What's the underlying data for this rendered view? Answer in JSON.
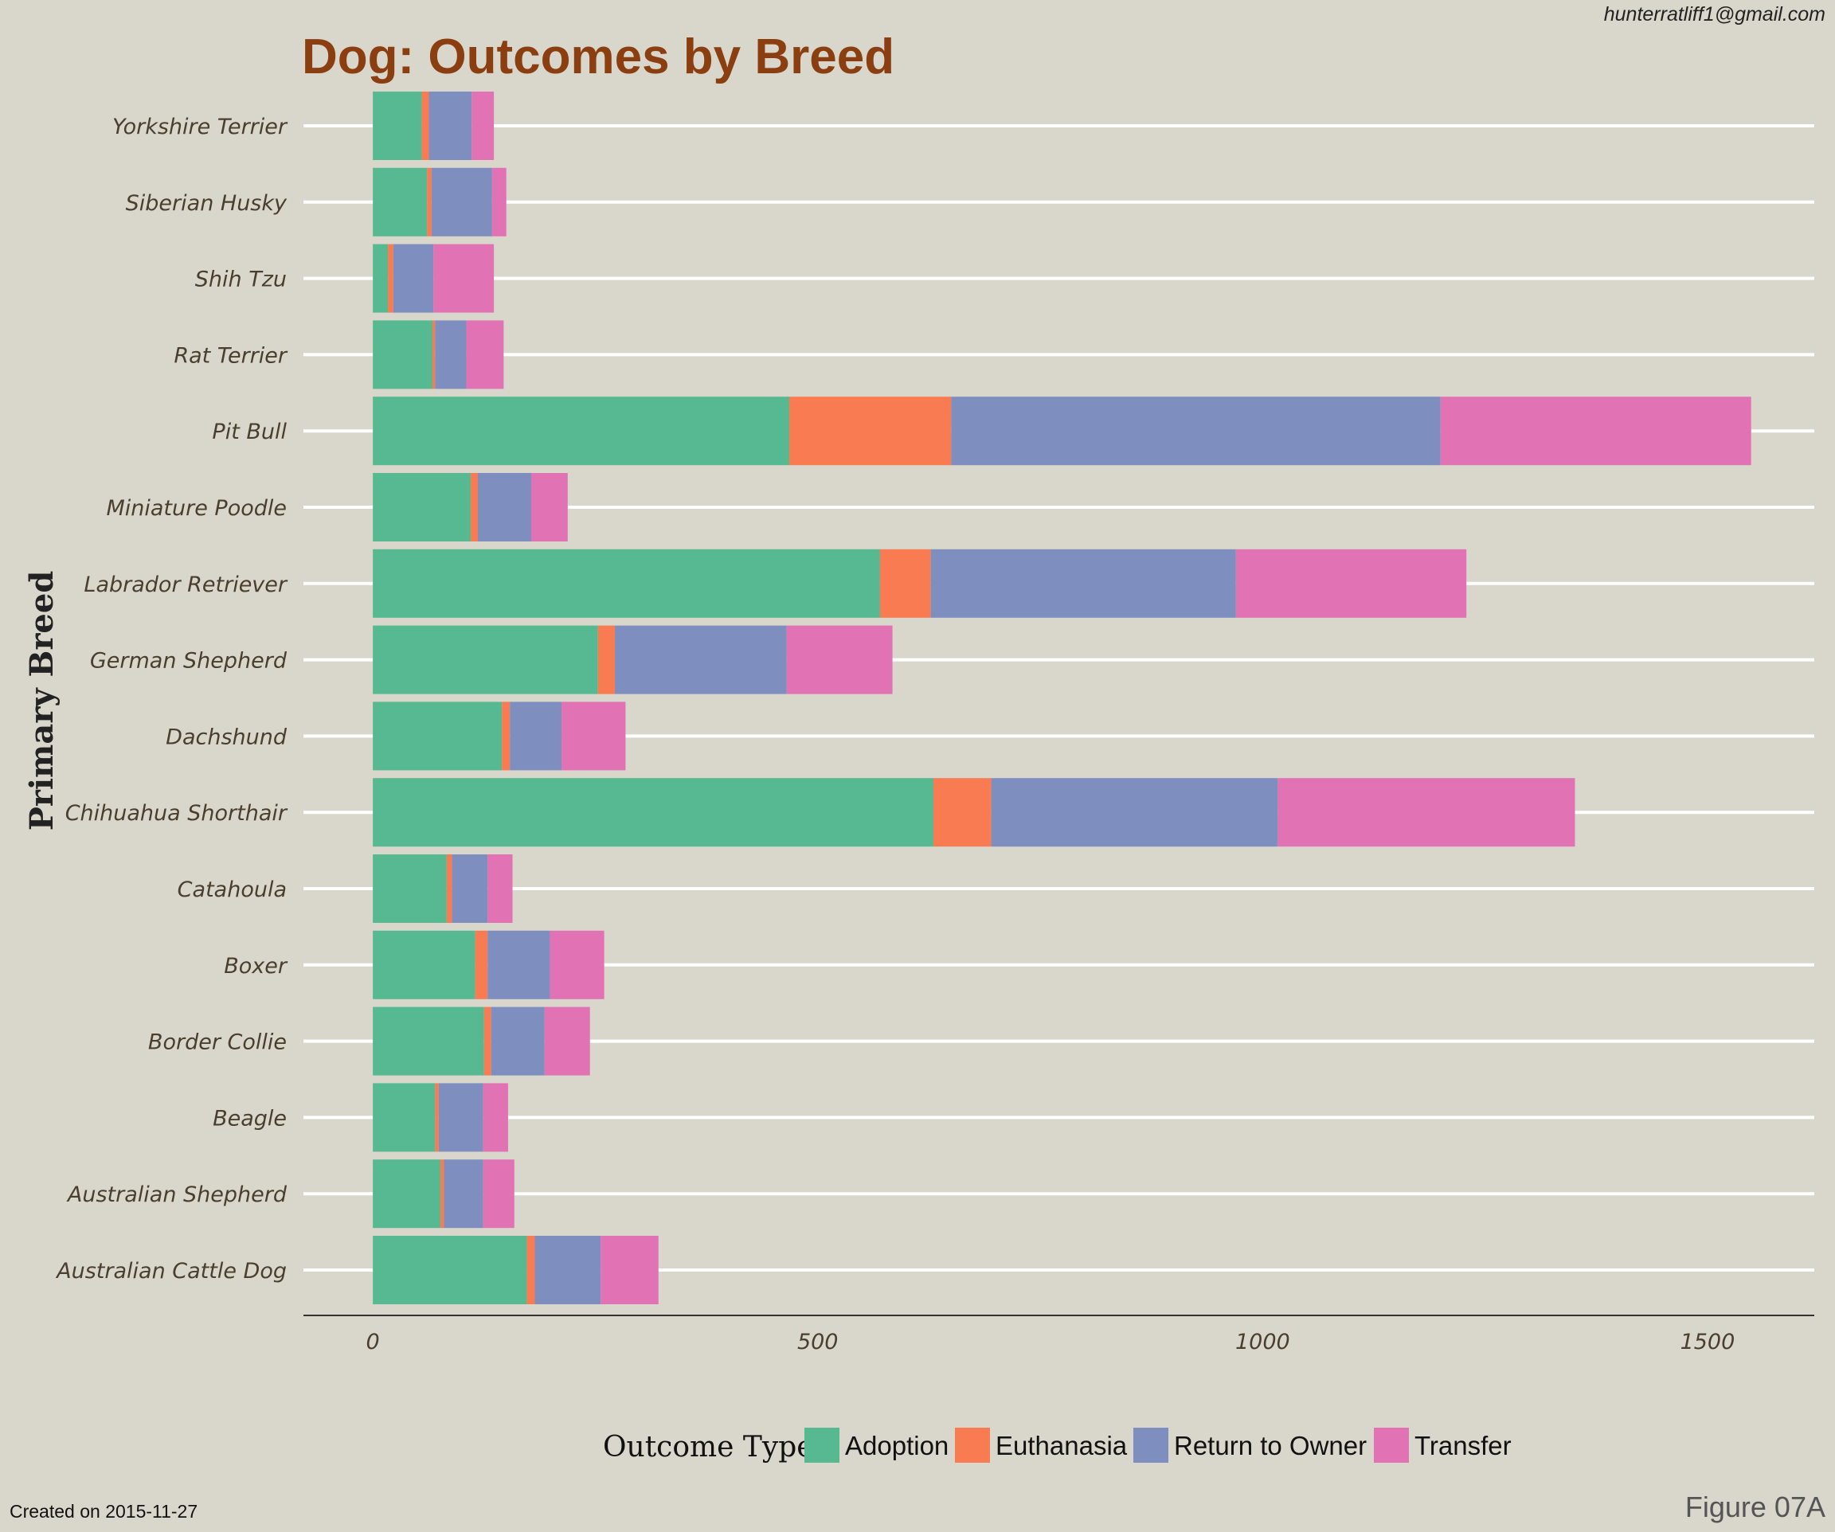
{
  "header": {
    "email": "hunterratliff1@gmail.com"
  },
  "footer": {
    "created": "Created on 2015-11-27",
    "figure": "Figure 07A"
  },
  "chart_data": {
    "type": "bar",
    "orientation": "horizontal",
    "stacked": true,
    "title": "Dog: Outcomes by Breed",
    "xlabel": "",
    "ylabel": "Primary Breed",
    "xlim": [
      -78,
      1620
    ],
    "xticks": [
      0,
      500,
      1000,
      1500
    ],
    "grid": "horizontal",
    "legend": {
      "title": "Outcome Type",
      "position": "bottom"
    },
    "categories": [
      "Yorkshire Terrier",
      "Siberian Husky",
      "Shih Tzu",
      "Rat Terrier",
      "Pit Bull",
      "Miniature Poodle",
      "Labrador Retriever",
      "German Shepherd",
      "Dachshund",
      "Chihuahua Shorthair",
      "Catahoula",
      "Boxer",
      "Border Collie",
      "Beagle",
      "Australian Shepherd",
      "Australian Cattle Dog"
    ],
    "series": [
      {
        "name": "Adoption",
        "color": "#56b991",
        "values": [
          55,
          61,
          17,
          67,
          468,
          110,
          570,
          253,
          145,
          630,
          83,
          115,
          125,
          70,
          76,
          173
        ]
      },
      {
        "name": "Euthanasia",
        "color": "#f97b52",
        "values": [
          8,
          5,
          6,
          3,
          182,
          8,
          57,
          19,
          9,
          65,
          6,
          14,
          8,
          4,
          4,
          9
        ]
      },
      {
        "name": "Return to Owner",
        "color": "#7e8ebf",
        "values": [
          48,
          68,
          45,
          35,
          550,
          60,
          343,
          193,
          58,
          322,
          40,
          70,
          60,
          50,
          44,
          74
        ]
      },
      {
        "name": "Transfer",
        "color": "#e173b5",
        "values": [
          25,
          16,
          68,
          42,
          349,
          41,
          259,
          119,
          72,
          334,
          28,
          61,
          51,
          28,
          35,
          65
        ]
      }
    ]
  }
}
